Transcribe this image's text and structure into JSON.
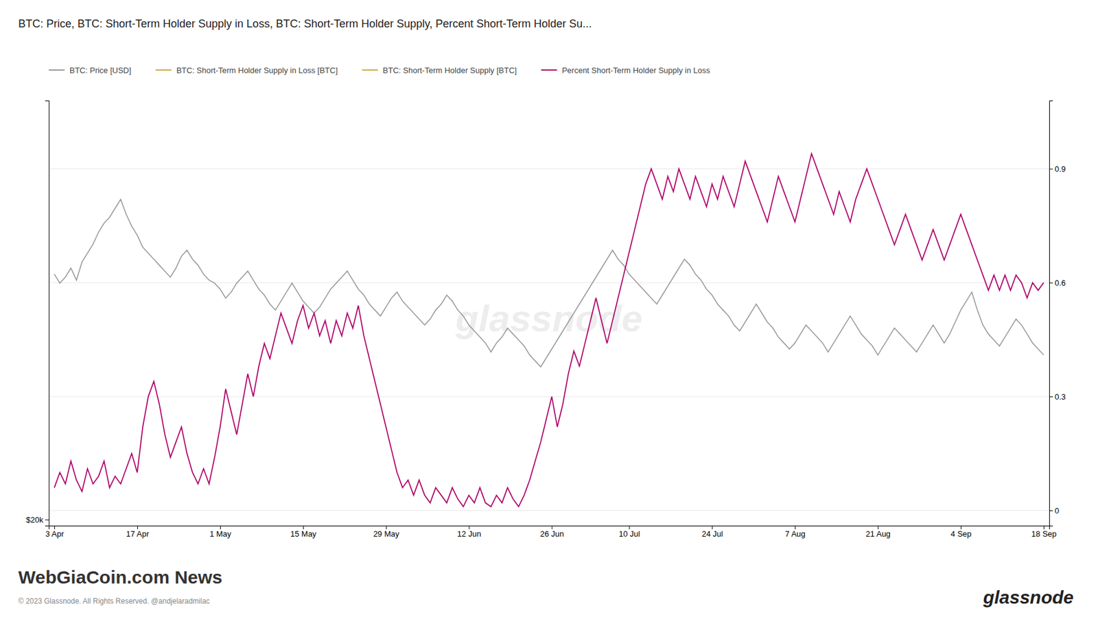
{
  "chart_data": {
    "type": "line",
    "title": "BTC: Price, BTC: Short-Term Holder Supply in Loss, BTC: Short-Term Holder Supply, Percent Short-Term Holder Su...",
    "categories": [
      "3 Apr",
      null,
      null,
      null,
      null,
      null,
      null,
      null,
      null,
      null,
      null,
      null,
      null,
      null,
      null,
      "17 Apr",
      null,
      null,
      null,
      null,
      null,
      null,
      null,
      null,
      null,
      null,
      null,
      null,
      null,
      null,
      "1 May",
      null,
      null,
      null,
      null,
      null,
      null,
      null,
      null,
      null,
      null,
      null,
      null,
      null,
      null,
      "15 May",
      null,
      null,
      null,
      null,
      null,
      null,
      null,
      null,
      null,
      null,
      null,
      null,
      null,
      null,
      "29 May",
      null,
      null,
      null,
      null,
      null,
      null,
      null,
      null,
      null,
      null,
      null,
      null,
      null,
      null,
      "12 Jun",
      null,
      null,
      null,
      null,
      null,
      null,
      null,
      null,
      null,
      null,
      null,
      null,
      null,
      null,
      "26 Jun",
      null,
      null,
      null,
      null,
      null,
      null,
      null,
      null,
      null,
      null,
      null,
      null,
      null,
      "10 Jul",
      null,
      null,
      null,
      null,
      null,
      null,
      null,
      null,
      null,
      null,
      null,
      null,
      null,
      null,
      "24 Jul",
      null,
      null,
      null,
      null,
      null,
      null,
      null,
      null,
      null,
      null,
      null,
      null,
      null,
      null,
      "7 Aug",
      null,
      null,
      null,
      null,
      null,
      null,
      null,
      null,
      null,
      null,
      null,
      null,
      null,
      null,
      "21 Aug",
      null,
      null,
      null,
      null,
      null,
      null,
      null,
      null,
      null,
      null,
      null,
      null,
      null,
      null,
      "4 Sep",
      null,
      null,
      null,
      null,
      null,
      null,
      null,
      null,
      null,
      null,
      null,
      null,
      null,
      null,
      "18 Sep"
    ],
    "series": [
      {
        "color": "#999999",
        "values": [
          28.2,
          27.9,
          28.1,
          28.4,
          28.0,
          28.6,
          28.9,
          29.2,
          29.6,
          29.9,
          30.1,
          30.4,
          30.7,
          30.2,
          29.8,
          29.5,
          29.1,
          28.9,
          28.7,
          28.5,
          28.3,
          28.1,
          28.4,
          28.8,
          29.0,
          28.7,
          28.5,
          28.2,
          28.0,
          27.9,
          27.7,
          27.4,
          27.6,
          27.9,
          28.1,
          28.3,
          28.0,
          27.7,
          27.5,
          27.2,
          27.0,
          27.3,
          27.6,
          27.9,
          27.6,
          27.3,
          27.1,
          26.9,
          27.1,
          27.4,
          27.7,
          27.9,
          28.1,
          28.3,
          28.0,
          27.7,
          27.5,
          27.2,
          27.0,
          26.8,
          27.1,
          27.4,
          27.6,
          27.3,
          27.1,
          26.9,
          26.7,
          26.5,
          26.7,
          27.0,
          27.2,
          27.5,
          27.3,
          27.0,
          26.8,
          26.5,
          26.3,
          26.1,
          25.9,
          25.6,
          25.9,
          26.1,
          26.4,
          26.2,
          26.0,
          25.8,
          25.5,
          25.3,
          25.1,
          25.4,
          25.7,
          26.0,
          26.3,
          26.6,
          26.9,
          27.2,
          27.5,
          27.8,
          28.1,
          28.4,
          28.7,
          29.0,
          28.7,
          28.5,
          28.2,
          28.0,
          27.8,
          27.6,
          27.4,
          27.2,
          27.5,
          27.8,
          28.1,
          28.4,
          28.7,
          28.5,
          28.2,
          28.0,
          27.7,
          27.5,
          27.2,
          27.0,
          26.8,
          26.5,
          26.3,
          26.6,
          26.9,
          27.2,
          26.9,
          26.6,
          26.4,
          26.1,
          25.9,
          25.7,
          25.9,
          26.2,
          26.5,
          26.3,
          26.1,
          25.9,
          25.6,
          25.9,
          26.2,
          26.5,
          26.8,
          26.5,
          26.2,
          26.0,
          25.8,
          25.5,
          25.8,
          26.1,
          26.4,
          26.2,
          26.0,
          25.8,
          25.6,
          25.9,
          26.2,
          26.5,
          26.2,
          25.9,
          26.2,
          26.6,
          27.0,
          27.3,
          27.6,
          27.0,
          26.5,
          26.2,
          26.0,
          25.8,
          26.1,
          26.4,
          26.7,
          26.5,
          26.2,
          25.9,
          25.7,
          25.5
        ]
      },
      {
        "color": "#b0006a",
        "axis": "y2",
        "values": [
          0.06,
          0.1,
          0.07,
          0.13,
          0.08,
          0.05,
          0.11,
          0.07,
          0.09,
          0.13,
          0.06,
          0.09,
          0.07,
          0.11,
          0.15,
          0.1,
          0.22,
          0.3,
          0.34,
          0.28,
          0.2,
          0.14,
          0.18,
          0.22,
          0.15,
          0.1,
          0.07,
          0.11,
          0.07,
          0.14,
          0.22,
          0.32,
          0.26,
          0.2,
          0.28,
          0.36,
          0.3,
          0.38,
          0.44,
          0.4,
          0.46,
          0.52,
          0.48,
          0.44,
          0.5,
          0.54,
          0.48,
          0.52,
          0.46,
          0.5,
          0.44,
          0.5,
          0.46,
          0.52,
          0.48,
          0.54,
          0.46,
          0.4,
          0.34,
          0.28,
          0.22,
          0.16,
          0.1,
          0.06,
          0.08,
          0.04,
          0.08,
          0.04,
          0.02,
          0.06,
          0.04,
          0.02,
          0.06,
          0.03,
          0.01,
          0.04,
          0.02,
          0.06,
          0.02,
          0.01,
          0.04,
          0.02,
          0.06,
          0.03,
          0.01,
          0.04,
          0.08,
          0.13,
          0.18,
          0.24,
          0.3,
          0.22,
          0.28,
          0.36,
          0.42,
          0.38,
          0.44,
          0.5,
          0.56,
          0.5,
          0.44,
          0.5,
          0.56,
          0.62,
          0.68,
          0.74,
          0.8,
          0.86,
          0.9,
          0.86,
          0.82,
          0.88,
          0.84,
          0.9,
          0.86,
          0.82,
          0.88,
          0.84,
          0.8,
          0.86,
          0.82,
          0.88,
          0.84,
          0.8,
          0.86,
          0.92,
          0.88,
          0.84,
          0.8,
          0.76,
          0.82,
          0.88,
          0.84,
          0.8,
          0.76,
          0.82,
          0.88,
          0.94,
          0.9,
          0.86,
          0.82,
          0.78,
          0.84,
          0.8,
          0.76,
          0.82,
          0.86,
          0.9,
          0.86,
          0.82,
          0.78,
          0.74,
          0.7,
          0.74,
          0.78,
          0.74,
          0.7,
          0.66,
          0.7,
          0.74,
          0.7,
          0.66,
          0.7,
          0.74,
          0.78,
          0.74,
          0.7,
          0.66,
          0.62,
          0.58,
          0.62,
          0.58,
          0.62,
          0.58,
          0.62,
          0.6,
          0.56,
          0.6,
          0.58,
          0.6
        ]
      }
    ],
    "ylim": [
      19.8,
      34.0
    ],
    "yticks": [
      {
        "value": 20,
        "label": "$20k"
      }
    ],
    "y2lim": [
      -0.04,
      1.08
    ],
    "y2ticks": [
      0,
      0.3,
      0.6,
      0.9
    ],
    "grid": true,
    "legend_entries": [
      {
        "label": "BTC: Price [USD]",
        "color": "#999999"
      },
      {
        "label": "BTC: Short-Term Holder Supply in Loss [BTC]",
        "color": "#ccaa44"
      },
      {
        "label": "BTC: Short-Term Holder Supply [BTC]",
        "color": "#ccaa44"
      },
      {
        "label": "Percent Short-Term Holder Supply in Loss",
        "color": "#b0006a"
      }
    ],
    "annotations": [
      {
        "text": "glassnode"
      },
      {
        "text": "WebGiaCoin.com News"
      },
      {
        "text": "© 2023 Glassnode. All Rights Reserved.   @andjelaradmilac"
      },
      {
        "text": "glassnode"
      }
    ]
  }
}
